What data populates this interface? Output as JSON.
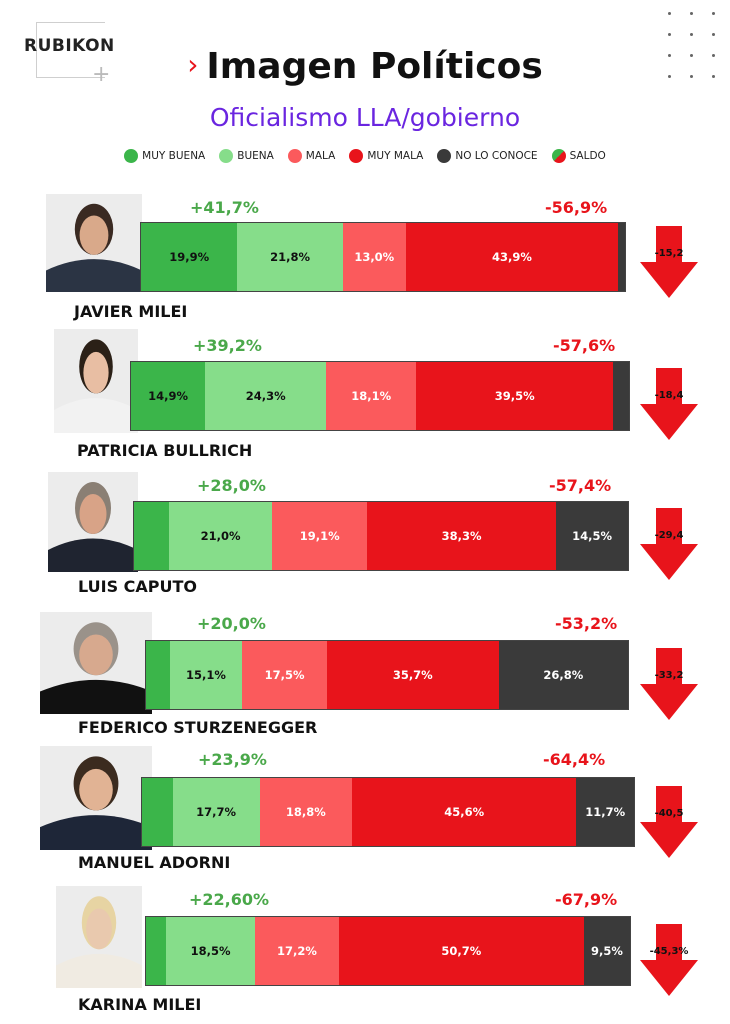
{
  "brand": "RUBIKON",
  "title": "Imagen Políticos",
  "subtitle": "Oficialismo LLA/gobierno",
  "colors": {
    "muy_buena": "#3bb54a",
    "buena": "#86dd8a",
    "mala": "#fb5a5c",
    "muy_mala": "#e8141b",
    "no_lo_conoce": "#3a3a3a",
    "positive_text": "#4aa84a",
    "negative_text": "#e8141b",
    "accent_purple": "#6a25e0"
  },
  "legend": [
    {
      "key": "muy_buena",
      "label": "MUY BUENA"
    },
    {
      "key": "buena",
      "label": "BUENA"
    },
    {
      "key": "mala",
      "label": "MALA"
    },
    {
      "key": "muy_mala",
      "label": "MUY MALA"
    },
    {
      "key": "no_lo_conoce",
      "label": "NO LO CONOCE"
    },
    {
      "key": "saldo",
      "label": "SALDO"
    }
  ],
  "chart_data": {
    "type": "bar",
    "stacked": true,
    "orientation": "horizontal",
    "title": "Imagen Políticos",
    "subtitle": "Oficialismo LLA/gobierno",
    "series_names": [
      "MUY BUENA",
      "BUENA",
      "MALA",
      "MUY MALA",
      "NO LO CONOCE"
    ],
    "rows": [
      {
        "name": "JAVIER MILEI",
        "positive": "+41,7%",
        "negative": "-56,9%",
        "saldo": "-15,2",
        "segments": [
          {
            "key": "muy_buena",
            "value": 19.9,
            "label": "19,9%"
          },
          {
            "key": "buena",
            "value": 21.8,
            "label": "21,8%"
          },
          {
            "key": "mala",
            "value": 13.0,
            "label": "13,0%"
          },
          {
            "key": "muy_mala",
            "value": 43.9,
            "label": "43,9%"
          },
          {
            "key": "no_lo_conoce",
            "value": 1.4,
            "label": ""
          }
        ]
      },
      {
        "name": "PATRICIA BULLRICH",
        "positive": "+39,2%",
        "negative": "-57,6%",
        "saldo": "-18,4",
        "segments": [
          {
            "key": "muy_buena",
            "value": 14.9,
            "label": "14,9%"
          },
          {
            "key": "buena",
            "value": 24.3,
            "label": "24,3%"
          },
          {
            "key": "mala",
            "value": 18.1,
            "label": "18,1%"
          },
          {
            "key": "muy_mala",
            "value": 39.5,
            "label": "39,5%"
          },
          {
            "key": "no_lo_conoce",
            "value": 3.2,
            "label": ""
          }
        ]
      },
      {
        "name": "LUIS CAPUTO",
        "positive": "+28,0%",
        "negative": "-57,4%",
        "saldo": "-29,4",
        "segments": [
          {
            "key": "muy_buena",
            "value": 7.0,
            "label": ""
          },
          {
            "key": "buena",
            "value": 21.0,
            "label": "21,0%"
          },
          {
            "key": "mala",
            "value": 19.1,
            "label": "19,1%"
          },
          {
            "key": "muy_mala",
            "value": 38.3,
            "label": "38,3%"
          },
          {
            "key": "no_lo_conoce",
            "value": 14.5,
            "label": "14,5%"
          }
        ]
      },
      {
        "name": "FEDERICO STURZENEGGER",
        "positive": "+20,0%",
        "negative": "-53,2%",
        "saldo": "-33,2",
        "segments": [
          {
            "key": "muy_buena",
            "value": 4.9,
            "label": ""
          },
          {
            "key": "buena",
            "value": 15.1,
            "label": "15,1%"
          },
          {
            "key": "mala",
            "value": 17.5,
            "label": "17,5%"
          },
          {
            "key": "muy_mala",
            "value": 35.7,
            "label": "35,7%"
          },
          {
            "key": "no_lo_conoce",
            "value": 26.8,
            "label": "26,8%"
          }
        ]
      },
      {
        "name": "MANUEL ADORNI",
        "positive": "+23,9%",
        "negative": "-64,4%",
        "saldo": "-40,5",
        "segments": [
          {
            "key": "muy_buena",
            "value": 6.2,
            "label": ""
          },
          {
            "key": "buena",
            "value": 17.7,
            "label": "17,7%"
          },
          {
            "key": "mala",
            "value": 18.8,
            "label": "18,8%"
          },
          {
            "key": "muy_mala",
            "value": 45.6,
            "label": "45,6%"
          },
          {
            "key": "no_lo_conoce",
            "value": 11.7,
            "label": "11,7%"
          }
        ]
      },
      {
        "name": "KARINA MILEI",
        "positive": "+22,60%",
        "negative": "-67,9%",
        "saldo": "-45,3%",
        "segments": [
          {
            "key": "muy_buena",
            "value": 4.1,
            "label": ""
          },
          {
            "key": "buena",
            "value": 18.5,
            "label": "18,5%"
          },
          {
            "key": "mala",
            "value": 17.2,
            "label": "17,2%"
          },
          {
            "key": "muy_mala",
            "value": 50.7,
            "label": "50,7%"
          },
          {
            "key": "no_lo_conoce",
            "value": 9.5,
            "label": "9,5%"
          }
        ]
      }
    ]
  }
}
